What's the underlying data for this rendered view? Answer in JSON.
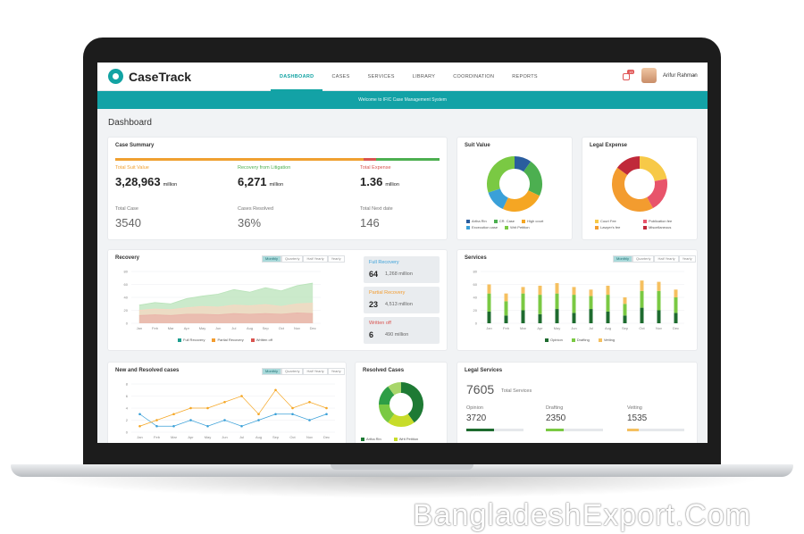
{
  "app": {
    "brand": "CaseTrack",
    "banner": "Welcome to IFIC Case Management System",
    "page_title": "Dashboard"
  },
  "nav": {
    "items": [
      "DASHBOARD",
      "CASES",
      "SERVICES",
      "LIBRARY",
      "COORDINATION",
      "REPORTS"
    ],
    "active": "DASHBOARD"
  },
  "user": {
    "name": "Arifur Rahman",
    "notifications": "13"
  },
  "case_summary": {
    "title": "Case Summary",
    "stats": [
      {
        "label": "Total Suit Value",
        "value": "3,28,963",
        "unit": "million",
        "color": "#f0a030"
      },
      {
        "label": "Recovery from Litigation",
        "value": "6,271",
        "unit": "million",
        "color": "#4caf50"
      },
      {
        "label": "Total Expense",
        "value": "1.36",
        "unit": "million",
        "color": "#d9534f"
      }
    ],
    "counts": [
      {
        "label": "Total Case",
        "value": "3540"
      },
      {
        "label": "Cases Resolved",
        "value": "36%"
      },
      {
        "label": "Total Next date",
        "value": "146"
      }
    ]
  },
  "suit_value": {
    "title": "Suit Value",
    "legend": [
      "Artha Rin",
      "CR. Case",
      "High court",
      "Excecution case",
      "Writ Petition"
    ],
    "chart_data": {
      "type": "pie",
      "labels": [
        "Artha Rin",
        "CR. Case",
        "High court",
        "Excecution case",
        "Writ Petition"
      ],
      "values": [
        10,
        22,
        25,
        13,
        30
      ],
      "colors": [
        "#2a5d9e",
        "#4caf50",
        "#f5a623",
        "#3aa0d8",
        "#7ac943"
      ]
    }
  },
  "legal_expense": {
    "title": "Legal Expense",
    "legend": [
      "Court Fee",
      "Publication fee",
      "Lawyer's fee",
      "Miscellaneous"
    ],
    "chart_data": {
      "type": "pie",
      "labels": [
        "Court Fee",
        "Publication fee",
        "Lawyer's fee",
        "Miscellaneous"
      ],
      "values": [
        22,
        20,
        43,
        15
      ],
      "colors": [
        "#f7c948",
        "#e8546b",
        "#f39c2f",
        "#c0293a"
      ]
    }
  },
  "recovery": {
    "title": "Recovery",
    "tabs": [
      "Monthly",
      "Quarterly",
      "Half Yearly",
      "Yearly"
    ],
    "legend": [
      "Full Recovery",
      "Partial Recovery",
      "Written off"
    ],
    "boxes": [
      {
        "title": "Full Recovery",
        "count": "64",
        "amount": "1,268 million",
        "color": "#3aa0d8"
      },
      {
        "title": "Partial Recovery",
        "count": "23",
        "amount": "4,513 million",
        "color": "#f39c2f"
      },
      {
        "title": "Written off",
        "count": "6",
        "amount": "490 million",
        "color": "#d9534f"
      }
    ],
    "chart_data": {
      "type": "area",
      "categories": [
        "Jan",
        "Feb",
        "Mar",
        "Apr",
        "May",
        "Jun",
        "Jul",
        "Aug",
        "Sep",
        "Oct",
        "Nov",
        "Dec"
      ],
      "ylim": [
        0,
        80
      ],
      "yticks": [
        "0",
        "20",
        "40",
        "60",
        "80"
      ],
      "series": [
        {
          "name": "Full Recovery",
          "values": [
            28,
            32,
            30,
            38,
            42,
            45,
            52,
            48,
            55,
            50,
            58,
            62
          ],
          "color": "#b9e3b9"
        },
        {
          "name": "Partial Recovery",
          "values": [
            20,
            22,
            21,
            24,
            26,
            25,
            28,
            27,
            29,
            26,
            30,
            31
          ],
          "color": "#f7d7c2"
        },
        {
          "name": "Written off",
          "values": [
            12,
            13,
            12,
            14,
            14,
            13,
            15,
            14,
            15,
            14,
            16,
            15
          ],
          "color": "#e9b3a9"
        }
      ]
    }
  },
  "services": {
    "title": "Services",
    "tabs": [
      "Monthly",
      "Quarterly",
      "Half Yearly",
      "Yearly"
    ],
    "legend": [
      "Opinion",
      "Drafting",
      "Vetting"
    ],
    "chart_data": {
      "type": "bar",
      "categories": [
        "Jan",
        "Feb",
        "Mar",
        "Apr",
        "May",
        "Jun",
        "Jul",
        "Aug",
        "Sep",
        "Oct",
        "Nov",
        "Dec"
      ],
      "ylim": [
        0,
        80
      ],
      "yticks": [
        "0",
        "20",
        "40",
        "60",
        "80"
      ],
      "series": [
        {
          "name": "Opinion",
          "values": [
            18,
            12,
            20,
            14,
            22,
            16,
            22,
            18,
            12,
            24,
            20,
            16
          ],
          "color": "#1e6b2f"
        },
        {
          "name": "Drafting",
          "values": [
            28,
            22,
            26,
            30,
            24,
            28,
            20,
            26,
            18,
            26,
            30,
            24
          ],
          "color": "#7ac943"
        },
        {
          "name": "Vetting",
          "values": [
            14,
            12,
            10,
            14,
            16,
            12,
            10,
            14,
            10,
            16,
            14,
            12
          ],
          "color": "#f5c060"
        }
      ]
    }
  },
  "new_resolved": {
    "title": "New and Resolved cases",
    "tabs": [
      "Monthly",
      "Quarterly",
      "Half Yearly",
      "Yearly"
    ],
    "chart_data": {
      "type": "line",
      "categories": [
        "Jan",
        "Feb",
        "Mar",
        "Apr",
        "May",
        "Jun",
        "Jul",
        "Aug",
        "Sep",
        "Oct",
        "Nov",
        "Dec"
      ],
      "ylim": [
        0,
        8
      ],
      "yticks": [
        "0",
        "2",
        "4",
        "6",
        "8"
      ],
      "series": [
        {
          "values": [
            3,
            1,
            1,
            2,
            1,
            2,
            1,
            2,
            3,
            3,
            2,
            3
          ],
          "color": "#3aa0d8"
        },
        {
          "values": [
            1,
            2,
            3,
            4,
            4,
            5,
            6,
            3,
            7,
            4,
            5,
            4
          ],
          "color": "#f5a623"
        }
      ]
    }
  },
  "resolved_cases": {
    "title": "Resolved Cases",
    "legend": [
      "Artha Rin",
      "Writ Petition"
    ],
    "chart_data": {
      "type": "pie",
      "labels": [
        "Artha Rin",
        "Writ Petition",
        "",
        "",
        ""
      ],
      "values": [
        40,
        20,
        15,
        15,
        10
      ],
      "colors": [
        "#1e7a34",
        "#c7dc2a",
        "#7ac943",
        "#2e9e46",
        "#a8d66a"
      ]
    }
  },
  "legal_services": {
    "title": "Legal Services",
    "total": "7605",
    "total_label": "Total Services",
    "items": [
      {
        "label": "Opinion",
        "value": "3720",
        "fraction": 0.49,
        "color": "#1e6b2f"
      },
      {
        "label": "Drafting",
        "value": "2350",
        "fraction": 0.31,
        "color": "#7ac943"
      },
      {
        "label": "Vetting",
        "value": "1535",
        "fraction": 0.2,
        "color": "#f5c060"
      }
    ]
  },
  "watermark": "BangladeshExport.Com"
}
